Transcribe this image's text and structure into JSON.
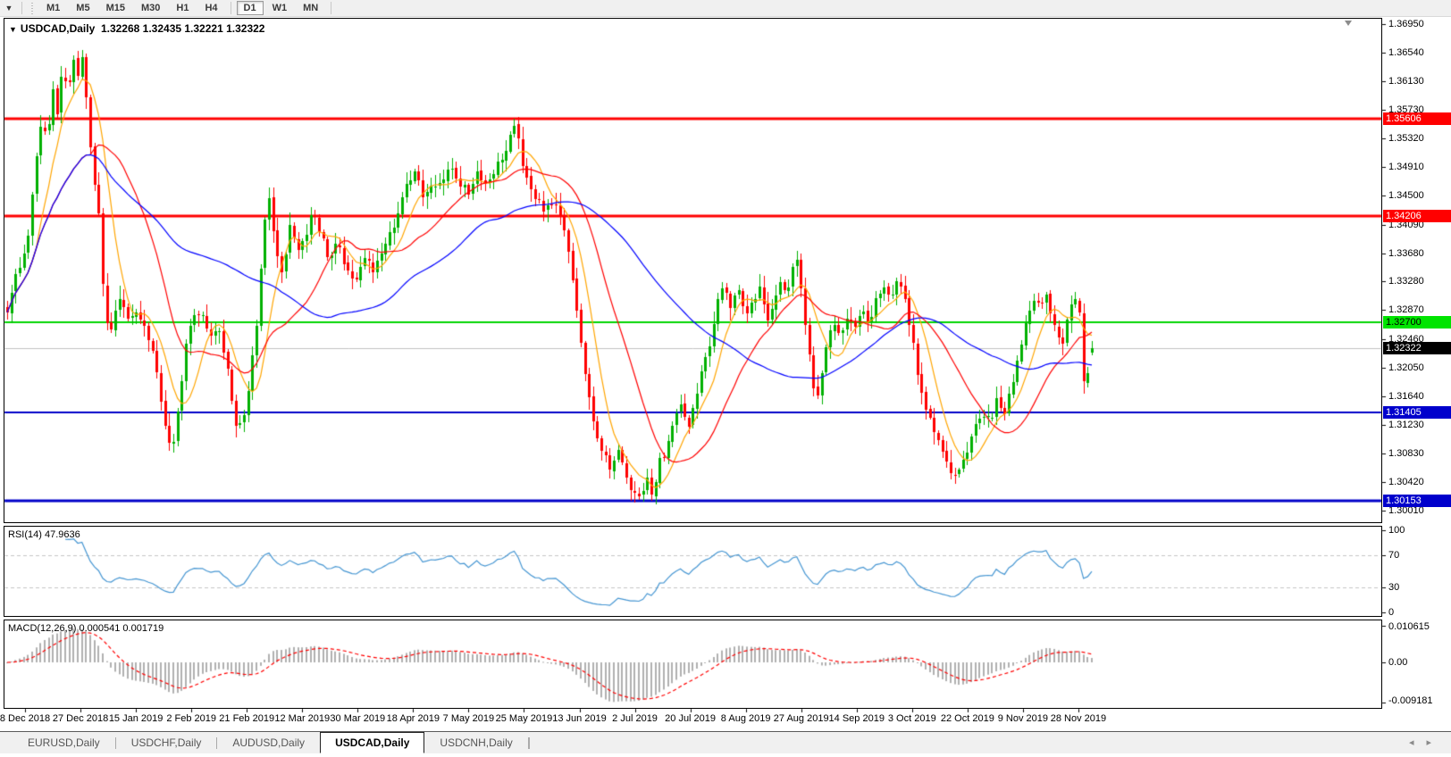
{
  "toolbar": {
    "menu_glyph": "▼",
    "items": [
      {
        "label": "M1"
      },
      {
        "label": "M5"
      },
      {
        "label": "M15"
      },
      {
        "label": "M30"
      },
      {
        "label": "H1"
      },
      {
        "label": "H4"
      },
      {
        "sep": true
      },
      {
        "label": "D1",
        "active": true
      },
      {
        "label": "W1"
      },
      {
        "label": "MN"
      },
      {
        "sep": true
      }
    ]
  },
  "chart": {
    "title": "USDCAD,Daily",
    "ohlc": "1.32268 1.32435 1.32221 1.32322",
    "arrow_glyph": "▼"
  },
  "price_axis": {
    "top": 1.3695,
    "bottom": 1.3001,
    "ticks": [
      "1.36950",
      "1.36540",
      "1.36130",
      "1.35730",
      "1.35320",
      "1.34910",
      "1.34500",
      "1.34090",
      "1.33680",
      "1.33280",
      "1.32870",
      "1.32460",
      "1.32050",
      "1.31640",
      "1.31230",
      "1.30830",
      "1.30420",
      "1.30010"
    ]
  },
  "hlines": [
    {
      "price": 1.35606,
      "label": "1.35606",
      "color": "#ff0000",
      "badge_bg": "#ff0000",
      "badge_fg": "#ffffff",
      "thickness": 3
    },
    {
      "price": 1.34206,
      "label": "1.34206",
      "color": "#ff0000",
      "badge_bg": "#ff0000",
      "badge_fg": "#ffffff",
      "thickness": 3
    },
    {
      "price": 1.327,
      "label": "1.32700",
      "color": "#00d400",
      "badge_bg": "#00e400",
      "badge_fg": "#000000",
      "thickness": 2
    },
    {
      "price": 1.31405,
      "label": "1.31405",
      "color": "#0000c8",
      "badge_bg": "#0000cc",
      "badge_fg": "#ffffff",
      "thickness": 2
    },
    {
      "price": 1.30153,
      "label": "1.30153",
      "color": "#0000c8",
      "badge_bg": "#0000cc",
      "badge_fg": "#ffffff",
      "thickness": 3
    }
  ],
  "current_price": {
    "value": 1.32322,
    "label": "1.32322",
    "line_color": "#c0c0c0",
    "badge_bg": "#000000",
    "badge_fg": "#ffffff"
  },
  "rsi": {
    "label": "RSI(14) 47.9636",
    "value": 47.9636,
    "period": 14,
    "line_color": "#4696d2",
    "levels": [
      {
        "value": 100,
        "label": "100"
      },
      {
        "value": 70,
        "label": "70",
        "dashed": true
      },
      {
        "value": 30,
        "label": "30",
        "dashed": true
      },
      {
        "value": 0,
        "label": "0"
      }
    ]
  },
  "macd": {
    "label": "MACD(12,26,9) 0.000541 0.001719",
    "main_value": 0.000541,
    "signal_value": 0.001719,
    "scale_top": "0.010615",
    "scale_mid": "0.00",
    "scale_bottom": "-0.009181",
    "hist_color": "#b0b0b0",
    "signal_color": "#ff0000"
  },
  "date_axis": [
    "8 Dec 2018",
    "27 Dec 2018",
    "15 Jan 2019",
    "2 Feb 2019",
    "21 Feb 2019",
    "12 Mar 2019",
    "30 Mar 2019",
    "18 Apr 2019",
    "7 May 2019",
    "25 May 2019",
    "13 Jun 2019",
    "2 Jul 2019",
    "20 Jul 2019",
    "8 Aug 2019",
    "27 Aug 2019",
    "14 Sep 2019",
    "3 Oct 2019",
    "22 Oct 2019",
    "9 Nov 2019",
    "28 Nov 2019"
  ],
  "tabs": [
    {
      "label": "EURUSD,Daily"
    },
    {
      "label": "USDCHF,Daily"
    },
    {
      "label": "AUDUSD,Daily"
    },
    {
      "label": "USDCAD,Daily",
      "active": true
    },
    {
      "label": "USDCNH,Daily"
    }
  ],
  "tab_arrows": {
    "left": "◂",
    "right": "▸"
  },
  "chart_data": {
    "type": "candlestick",
    "symbol": "USDCAD",
    "timeframe": "Daily",
    "title": "USDCAD,Daily",
    "ylim": [
      1.3001,
      1.3695
    ],
    "candle_count": 262,
    "last_candle": {
      "open": 1.32268,
      "high": 1.32435,
      "low": 1.32221,
      "close": 1.32322
    },
    "bull_color": "#00b000",
    "bear_color": "#ff0000",
    "moving_averages": [
      {
        "name": "fast-ma",
        "period": 8,
        "color": "#ffa500"
      },
      {
        "name": "mid-ma",
        "period": 21,
        "color": "#ff0000"
      },
      {
        "name": "slow-ma",
        "period": 55,
        "color": "#0000ff"
      }
    ],
    "support_resistance": [
      1.35606,
      1.34206,
      1.327,
      1.31405,
      1.30153
    ],
    "close_path": [
      [
        8,
        1.329
      ],
      [
        18,
        1.334
      ],
      [
        30,
        1.338
      ],
      [
        42,
        1.353
      ],
      [
        48,
        1.356
      ],
      [
        52,
        1.352
      ],
      [
        58,
        1.361
      ],
      [
        64,
        1.356
      ],
      [
        70,
        1.3645
      ],
      [
        76,
        1.359
      ],
      [
        82,
        1.365
      ],
      [
        88,
        1.362
      ],
      [
        92,
        1.3655
      ],
      [
        98,
        1.357
      ],
      [
        104,
        1.348
      ],
      [
        110,
        1.343
      ],
      [
        116,
        1.331
      ],
      [
        122,
        1.324
      ],
      [
        128,
        1.329
      ],
      [
        136,
        1.33
      ],
      [
        146,
        1.327
      ],
      [
        154,
        1.329
      ],
      [
        162,
        1.326
      ],
      [
        170,
        1.324
      ],
      [
        178,
        1.318
      ],
      [
        186,
        1.311
      ],
      [
        192,
        1.308
      ],
      [
        198,
        1.313
      ],
      [
        206,
        1.322
      ],
      [
        214,
        1.327
      ],
      [
        224,
        1.329
      ],
      [
        234,
        1.325
      ],
      [
        244,
        1.326
      ],
      [
        256,
        1.319
      ],
      [
        264,
        1.312
      ],
      [
        272,
        1.313
      ],
      [
        280,
        1.319
      ],
      [
        288,
        1.328
      ],
      [
        296,
        1.342
      ],
      [
        302,
        1.3445
      ],
      [
        308,
        1.338
      ],
      [
        316,
        1.333
      ],
      [
        324,
        1.341
      ],
      [
        332,
        1.337
      ],
      [
        342,
        1.339
      ],
      [
        350,
        1.343
      ],
      [
        358,
        1.34
      ],
      [
        368,
        1.336
      ],
      [
        378,
        1.3385
      ],
      [
        388,
        1.3345
      ],
      [
        398,
        1.333
      ],
      [
        408,
        1.3365
      ],
      [
        418,
        1.3345
      ],
      [
        430,
        1.3375
      ],
      [
        442,
        1.341
      ],
      [
        454,
        1.346
      ],
      [
        464,
        1.349
      ],
      [
        474,
        1.344
      ],
      [
        484,
        1.3465
      ],
      [
        494,
        1.3475
      ],
      [
        504,
        1.349
      ],
      [
        514,
        1.347
      ],
      [
        524,
        1.3455
      ],
      [
        534,
        1.3485
      ],
      [
        544,
        1.3465
      ],
      [
        554,
        1.349
      ],
      [
        564,
        1.3505
      ],
      [
        572,
        1.3545
      ],
      [
        578,
        1.3555
      ],
      [
        584,
        1.35
      ],
      [
        592,
        1.3465
      ],
      [
        602,
        1.344
      ],
      [
        612,
        1.343
      ],
      [
        620,
        1.3445
      ],
      [
        628,
        1.342
      ],
      [
        636,
        1.337
      ],
      [
        644,
        1.33
      ],
      [
        652,
        1.322
      ],
      [
        660,
        1.315
      ],
      [
        668,
        1.31
      ],
      [
        676,
        1.308
      ],
      [
        684,
        1.306
      ],
      [
        692,
        1.309
      ],
      [
        700,
        1.305
      ],
      [
        708,
        1.303
      ],
      [
        716,
        1.302
      ],
      [
        724,
        1.305
      ],
      [
        730,
        1.3025
      ],
      [
        738,
        1.307
      ],
      [
        746,
        1.309
      ],
      [
        754,
        1.313
      ],
      [
        762,
        1.315
      ],
      [
        770,
        1.312
      ],
      [
        778,
        1.316
      ],
      [
        786,
        1.32
      ],
      [
        794,
        1.3235
      ],
      [
        802,
        1.33
      ],
      [
        810,
        1.333
      ],
      [
        818,
        1.329
      ],
      [
        826,
        1.332
      ],
      [
        834,
        1.327
      ],
      [
        842,
        1.33
      ],
      [
        850,
        1.332
      ],
      [
        858,
        1.327
      ],
      [
        866,
        1.329
      ],
      [
        874,
        1.333
      ],
      [
        882,
        1.331
      ],
      [
        890,
        1.337
      ],
      [
        896,
        1.333
      ],
      [
        902,
        1.325
      ],
      [
        910,
        1.318
      ],
      [
        916,
        1.316
      ],
      [
        924,
        1.323
      ],
      [
        932,
        1.327
      ],
      [
        940,
        1.325
      ],
      [
        948,
        1.328
      ],
      [
        956,
        1.326
      ],
      [
        964,
        1.329
      ],
      [
        972,
        1.327
      ],
      [
        980,
        1.33
      ],
      [
        988,
        1.332
      ],
      [
        996,
        1.33
      ],
      [
        1004,
        1.333
      ],
      [
        1012,
        1.331
      ],
      [
        1020,
        1.325
      ],
      [
        1028,
        1.319
      ],
      [
        1036,
        1.315
      ],
      [
        1044,
        1.312
      ],
      [
        1052,
        1.309
      ],
      [
        1060,
        1.307
      ],
      [
        1068,
        1.305
      ],
      [
        1076,
        1.306
      ],
      [
        1084,
        1.309
      ],
      [
        1092,
        1.312
      ],
      [
        1100,
        1.314
      ],
      [
        1108,
        1.313
      ],
      [
        1116,
        1.316
      ],
      [
        1124,
        1.314
      ],
      [
        1132,
        1.318
      ],
      [
        1140,
        1.322
      ],
      [
        1148,
        1.327
      ],
      [
        1156,
        1.33
      ],
      [
        1164,
        1.329
      ],
      [
        1172,
        1.331
      ],
      [
        1180,
        1.326
      ],
      [
        1188,
        1.323
      ],
      [
        1196,
        1.329
      ],
      [
        1204,
        1.33
      ],
      [
        1209,
        1.3285
      ],
      [
        1213,
        1.318
      ],
      [
        1218,
        1.3205
      ],
      [
        1222,
        1.3232
      ]
    ]
  }
}
